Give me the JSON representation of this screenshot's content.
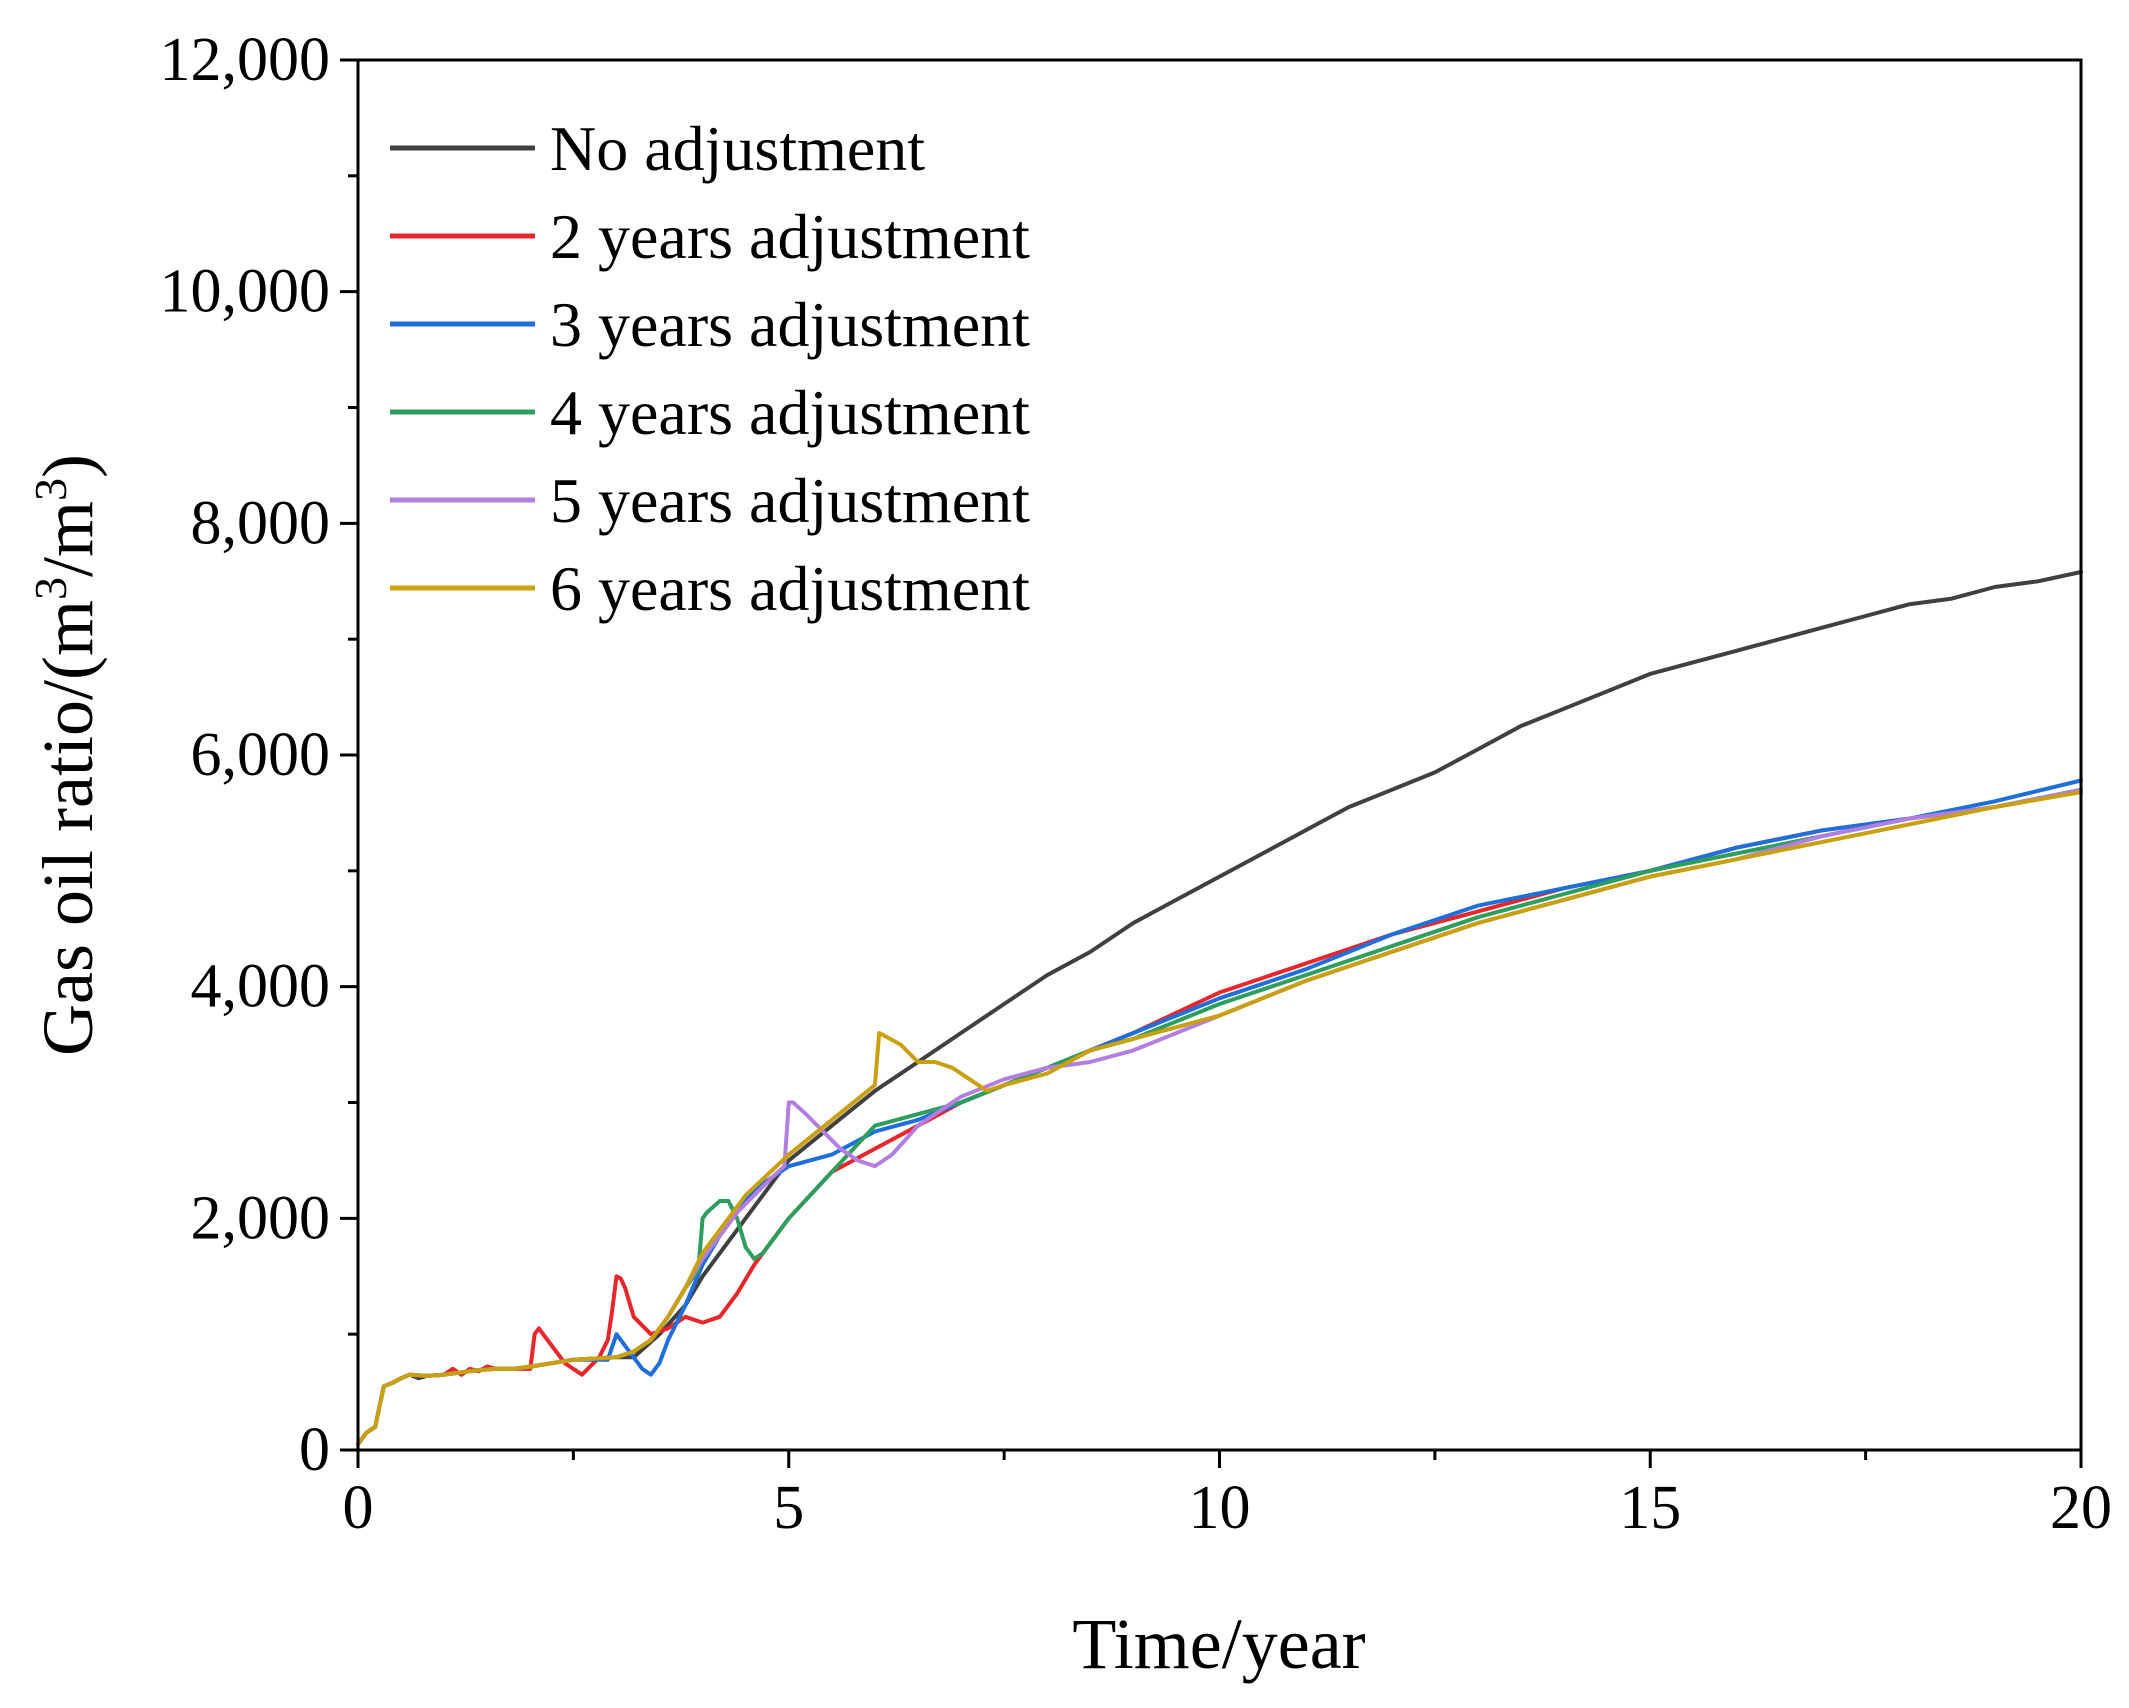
{
  "chart_data": {
    "type": "line",
    "title": "",
    "xlabel": "Time/year",
    "ylabel_base": "Gas oil ratio/(m",
    "ylabel_sup1": "3",
    "ylabel_mid": "/m",
    "ylabel_sup2": "3",
    "ylabel_end": ")",
    "xlim": [
      0,
      20
    ],
    "ylim": [
      0,
      12000
    ],
    "xticks": [
      0,
      5,
      10,
      15,
      20
    ],
    "xtick_labels": [
      "0",
      "5",
      "10",
      "15",
      "20"
    ],
    "yticks": [
      0,
      2000,
      4000,
      6000,
      8000,
      10000,
      12000
    ],
    "ytick_labels": [
      "0",
      "2,000",
      "4,000",
      "6,000",
      "8,000",
      "10,000",
      "12,000"
    ],
    "legend_position": "top-left",
    "series": [
      {
        "name": "No adjustment",
        "color": "#404040",
        "x": [
          0,
          0.1,
          0.2,
          0.3,
          0.4,
          0.5,
          0.6,
          0.7,
          0.8,
          1.0,
          1.1,
          1.2,
          1.3,
          1.4,
          1.5,
          1.6,
          1.8,
          2.0,
          2.5,
          3.0,
          3.2,
          3.5,
          3.8,
          4.0,
          4.5,
          5.0,
          5.5,
          6.0,
          6.5,
          7.0,
          7.5,
          8.0,
          8.5,
          9.0,
          9.5,
          10.0,
          10.5,
          11.0,
          11.5,
          12.0,
          12.5,
          13.0,
          13.5,
          14.0,
          14.5,
          15.0,
          15.5,
          16.0,
          16.5,
          17.0,
          17.5,
          18.0,
          18.5,
          19.0,
          19.5,
          20.0
        ],
        "y": [
          50,
          150,
          200,
          550,
          580,
          620,
          650,
          620,
          640,
          650,
          700,
          650,
          700,
          680,
          720,
          700,
          700,
          720,
          780,
          800,
          800,
          1000,
          1250,
          1500,
          2000,
          2500,
          2800,
          3100,
          3350,
          3600,
          3850,
          4100,
          4300,
          4550,
          4750,
          4950,
          5150,
          5350,
          5550,
          5700,
          5850,
          6050,
          6250,
          6400,
          6550,
          6700,
          6800,
          6900,
          7000,
          7100,
          7200,
          7300,
          7350,
          7450,
          7500,
          7580
        ]
      },
      {
        "name": "2 years adjustment",
        "color": "#e8262c",
        "x": [
          0,
          0.1,
          0.2,
          0.3,
          0.4,
          0.5,
          0.6,
          0.8,
          1.0,
          1.1,
          1.2,
          1.3,
          1.4,
          1.5,
          1.6,
          1.8,
          1.9,
          2.0,
          2.05,
          2.1,
          2.2,
          2.4,
          2.6,
          2.8,
          2.9,
          2.95,
          3.0,
          3.05,
          3.1,
          3.2,
          3.4,
          3.6,
          3.8,
          4.0,
          4.2,
          4.4,
          4.6,
          4.8,
          5.0,
          5.5,
          6.0,
          6.5,
          7.0,
          7.5,
          8.0,
          8.5,
          9.0,
          10.0,
          11.0,
          12.0,
          13.0,
          14.0,
          15.0,
          16.0,
          17.0,
          18.0,
          19.0,
          20.0
        ],
        "y": [
          50,
          150,
          200,
          550,
          580,
          620,
          650,
          640,
          650,
          700,
          650,
          700,
          680,
          720,
          700,
          700,
          700,
          700,
          1000,
          1050,
          950,
          750,
          650,
          800,
          950,
          1200,
          1500,
          1480,
          1400,
          1150,
          1000,
          1050,
          1150,
          1100,
          1150,
          1350,
          1600,
          1800,
          2000,
          2400,
          2600,
          2800,
          3000,
          3150,
          3300,
          3450,
          3600,
          3950,
          4200,
          4450,
          4650,
          4850,
          5000,
          5200,
          5350,
          5450,
          5550,
          5700
        ]
      },
      {
        "name": "3 years adjustment",
        "color": "#1f6fdb",
        "x": [
          0,
          0.1,
          0.2,
          0.3,
          0.4,
          0.5,
          0.6,
          0.8,
          1.0,
          1.2,
          1.4,
          1.6,
          1.8,
          2.0,
          2.5,
          2.9,
          3.0,
          3.05,
          3.1,
          3.2,
          3.3,
          3.4,
          3.5,
          3.6,
          3.8,
          4.0,
          4.2,
          4.4,
          4.6,
          4.8,
          5.0,
          5.5,
          6.0,
          6.5,
          7.0,
          7.5,
          8.0,
          8.5,
          9.0,
          10.0,
          11.0,
          12.0,
          13.0,
          14.0,
          15.0,
          16.0,
          17.0,
          18.0,
          19.0,
          20.0
        ],
        "y": [
          50,
          150,
          200,
          550,
          580,
          620,
          650,
          640,
          650,
          670,
          690,
          700,
          700,
          720,
          780,
          780,
          1000,
          950,
          900,
          800,
          700,
          650,
          750,
          950,
          1250,
          1600,
          1850,
          2050,
          2250,
          2350,
          2450,
          2550,
          2750,
          2850,
          3000,
          3150,
          3300,
          3450,
          3600,
          3900,
          4150,
          4450,
          4700,
          4850,
          5000,
          5200,
          5350,
          5450,
          5600,
          5780
        ]
      },
      {
        "name": "4 years adjustment",
        "color": "#2e9e5e",
        "x": [
          0,
          0.1,
          0.2,
          0.3,
          0.4,
          0.5,
          0.6,
          0.8,
          1.0,
          1.2,
          1.4,
          1.6,
          1.8,
          2.0,
          2.5,
          3.0,
          3.2,
          3.4,
          3.6,
          3.8,
          3.95,
          4.0,
          4.05,
          4.2,
          4.3,
          4.4,
          4.5,
          4.6,
          4.7,
          4.8,
          5.0,
          5.5,
          6.0,
          6.5,
          7.0,
          7.5,
          8.0,
          8.5,
          9.0,
          10.0,
          11.0,
          12.0,
          13.0,
          14.0,
          15.0,
          16.0,
          17.0,
          18.0,
          19.0,
          20.0
        ],
        "y": [
          50,
          150,
          200,
          550,
          580,
          620,
          650,
          640,
          650,
          670,
          690,
          700,
          700,
          720,
          780,
          800,
          850,
          950,
          1150,
          1400,
          1550,
          2000,
          2050,
          2150,
          2150,
          2000,
          1750,
          1650,
          1700,
          1800,
          2000,
          2400,
          2800,
          2900,
          3000,
          3150,
          3300,
          3450,
          3550,
          3850,
          4100,
          4350,
          4600,
          4800,
          5000,
          5150,
          5300,
          5450,
          5550,
          5700
        ]
      },
      {
        "name": "5 years adjustment",
        "color": "#b27fe0",
        "x": [
          0,
          0.1,
          0.2,
          0.3,
          0.4,
          0.5,
          0.6,
          0.8,
          1.0,
          1.2,
          1.4,
          1.6,
          1.8,
          2.0,
          2.5,
          3.0,
          3.2,
          3.4,
          3.6,
          3.8,
          4.0,
          4.2,
          4.4,
          4.6,
          4.8,
          4.95,
          5.0,
          5.05,
          5.2,
          5.4,
          5.6,
          5.8,
          6.0,
          6.2,
          6.5,
          7.0,
          7.5,
          8.0,
          8.5,
          9.0,
          10.0,
          11.0,
          12.0,
          13.0,
          14.0,
          15.0,
          16.0,
          17.0,
          18.0,
          19.0,
          20.0
        ],
        "y": [
          50,
          150,
          200,
          550,
          580,
          620,
          650,
          640,
          650,
          670,
          690,
          700,
          700,
          720,
          780,
          800,
          850,
          950,
          1150,
          1400,
          1650,
          1850,
          2050,
          2200,
          2350,
          2450,
          3000,
          3000,
          2900,
          2750,
          2600,
          2500,
          2450,
          2550,
          2800,
          3050,
          3200,
          3300,
          3350,
          3450,
          3750,
          4050,
          4300,
          4550,
          4750,
          4950,
          5100,
          5300,
          5450,
          5550,
          5700
        ]
      },
      {
        "name": "6 years adjustment",
        "color": "#c9a00f",
        "x": [
          0,
          0.1,
          0.2,
          0.3,
          0.4,
          0.5,
          0.6,
          0.8,
          1.0,
          1.2,
          1.4,
          1.6,
          1.8,
          2.0,
          2.5,
          3.0,
          3.2,
          3.4,
          3.6,
          3.8,
          4.0,
          4.5,
          5.0,
          5.5,
          6.0,
          6.05,
          6.1,
          6.3,
          6.5,
          6.7,
          6.9,
          7.1,
          7.3,
          7.5,
          8.0,
          8.5,
          9.0,
          10.0,
          11.0,
          12.0,
          13.0,
          14.0,
          15.0,
          16.0,
          17.0,
          18.0,
          19.0,
          20.0
        ],
        "y": [
          50,
          150,
          200,
          550,
          580,
          620,
          650,
          640,
          650,
          670,
          690,
          700,
          700,
          720,
          780,
          800,
          850,
          950,
          1150,
          1400,
          1700,
          2200,
          2550,
          2850,
          3150,
          3600,
          3580,
          3500,
          3350,
          3350,
          3300,
          3200,
          3100,
          3150,
          3250,
          3450,
          3550,
          3750,
          4050,
          4300,
          4550,
          4750,
          4950,
          5100,
          5250,
          5400,
          5550,
          5680
        ]
      }
    ]
  }
}
